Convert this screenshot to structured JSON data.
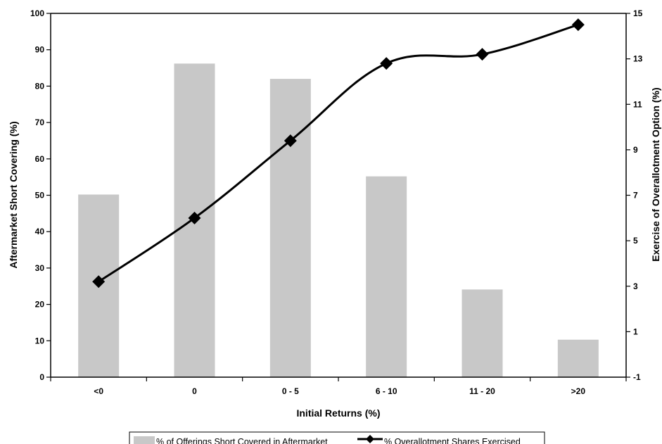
{
  "chart_data": {
    "type": "bar",
    "categories": [
      "<0",
      "0",
      "0 - 5",
      "6 - 10",
      "11 - 20",
      ">20"
    ],
    "xlabel": "Initial Returns (%)",
    "ylabel": "Aftermarket Short Covering (%)",
    "y2label": "Exercise of Overallotment Option (%)",
    "ylim": [
      0,
      100
    ],
    "y_ticks": [
      0,
      10,
      20,
      30,
      40,
      50,
      60,
      70,
      80,
      90,
      100
    ],
    "y2lim": [
      -1,
      15
    ],
    "y2_ticks": [
      -1,
      1,
      3,
      5,
      7,
      9,
      11,
      13,
      15
    ],
    "grid": false,
    "legend_position": "bottom",
    "series": [
      {
        "name": "% of Offerings Short Covered in Aftermarket",
        "kind": "bar",
        "axis": "left",
        "color": "#c8c8c8",
        "values": [
          50.2,
          86.2,
          82.0,
          55.2,
          24.1,
          10.3
        ]
      },
      {
        "name": "% Overallotment Shares Exercised",
        "kind": "line",
        "axis": "right",
        "marker": "diamond",
        "color": "#000000",
        "values": [
          3.2,
          6.0,
          9.4,
          12.8,
          13.2,
          14.5
        ]
      }
    ]
  }
}
